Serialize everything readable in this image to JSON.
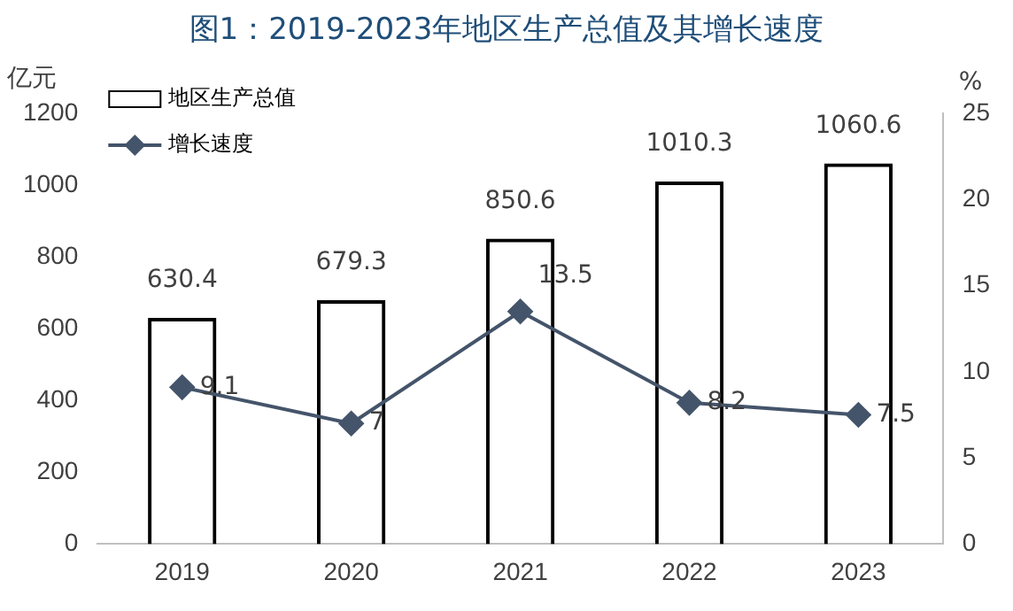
{
  "chart_data": {
    "type": "bar",
    "title": "图1：2019-2023年地区生产总值及其增长速度",
    "ylabel": "亿元",
    "y2label": "%",
    "categories": [
      "2019",
      "2020",
      "2021",
      "2022",
      "2023"
    ],
    "series": [
      {
        "name": "地区生产总值",
        "color": "#000000",
        "values": [
          630.4,
          679.3,
          850.6,
          1010.3,
          1060.6
        ]
      },
      {
        "name": "增长速度",
        "type": "line",
        "axis": "y2",
        "color": "#44546a",
        "marker": "diamond",
        "values": [
          9.1,
          7,
          13.5,
          8.2,
          7.5
        ]
      }
    ],
    "ylim": [
      0,
      1200
    ],
    "yticks": [
      0,
      200,
      400,
      600,
      800,
      1000,
      1200
    ],
    "y2lim": [
      0,
      25
    ],
    "y2ticks": [
      0,
      5,
      10,
      15,
      20,
      25
    ],
    "grid": false,
    "legend": "top left",
    "data_labels": true
  }
}
